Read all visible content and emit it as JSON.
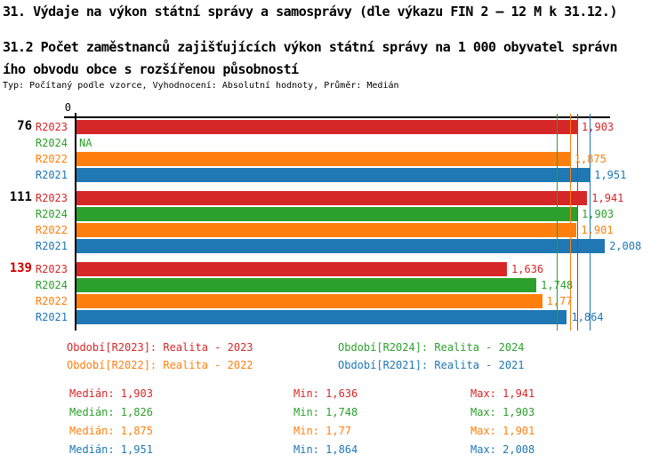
{
  "title": "31. Výdaje na výkon státní správy a samosprávy (dle výkazu FIN 2 – 12 M k 31.12.)",
  "subtitle_lines": [
    "31.2 Počet zaměstnanců zajišťujících výkon státní správy na 1 000 obyvatel správn",
    "ího obvodu obce s rozšířenou působností"
  ],
  "meta": "Typ: Počítaný podle vzorce, Vyhodnocení: Absolutní hodnoty, Průměr: Medián",
  "colors": {
    "R2023": "#d62728",
    "R2024": "#2ca02c",
    "R2022": "#ff7f0e",
    "R2021": "#1f77b4",
    "group_label_default": "#000000",
    "group_label_highlight": "#cc0000",
    "axis": "#000000"
  },
  "chart_data": {
    "type": "bar",
    "orientation": "horizontal",
    "title": "31.2 Počet zaměstnanců zajišťujících výkon státní správy na 1 000 obyvatel správního obvodu obce s rozšířenou působností",
    "axis": {
      "origin_label": "0",
      "min": 0,
      "max": 2.028,
      "grid": false
    },
    "series_order": [
      "R2023",
      "R2024",
      "R2022",
      "R2021"
    ],
    "groups": [
      {
        "label": "76",
        "highlight": false,
        "bars": [
          {
            "series": "R2023",
            "value": 1.903,
            "display": "1,903"
          },
          {
            "series": "R2024",
            "value": null,
            "display": "NA"
          },
          {
            "series": "R2022",
            "value": 1.875,
            "display": "1,875"
          },
          {
            "series": "R2021",
            "value": 1.951,
            "display": "1,951"
          }
        ]
      },
      {
        "label": "111",
        "highlight": false,
        "bars": [
          {
            "series": "R2023",
            "value": 1.941,
            "display": "1,941"
          },
          {
            "series": "R2024",
            "value": 1.903,
            "display": "1,903"
          },
          {
            "series": "R2022",
            "value": 1.901,
            "display": "1,901"
          },
          {
            "series": "R2021",
            "value": 2.008,
            "display": "2,008"
          }
        ]
      },
      {
        "label": "139",
        "highlight": true,
        "bars": [
          {
            "series": "R2023",
            "value": 1.636,
            "display": "1,636"
          },
          {
            "series": "R2024",
            "value": 1.748,
            "display": "1,748"
          },
          {
            "series": "R2022",
            "value": 1.77,
            "display": "1,77"
          },
          {
            "series": "R2021",
            "value": 1.864,
            "display": "1,864"
          }
        ]
      }
    ],
    "median_lines": [
      {
        "series": "R2023",
        "value": 1.903
      },
      {
        "series": "R2024",
        "value": 1.826
      },
      {
        "series": "R2022",
        "value": 1.875
      },
      {
        "series": "R2021",
        "value": 1.951
      }
    ]
  },
  "legend": [
    {
      "series": "R2023",
      "text": "Období[R2023]: Realita - 2023"
    },
    {
      "series": "R2024",
      "text": "Období[R2024]: Realita - 2024"
    },
    {
      "series": "R2022",
      "text": "Období[R2022]: Realita - 2022"
    },
    {
      "series": "R2021",
      "text": "Období[R2021]: Realita - 2021"
    }
  ],
  "stats": [
    {
      "series": "R2023",
      "median": "Medián: 1,903",
      "min": "Min: 1,636",
      "max": "Max: 1,941"
    },
    {
      "series": "R2024",
      "median": "Medián: 1,826",
      "min": "Min: 1,748",
      "max": "Max: 1,903"
    },
    {
      "series": "R2022",
      "median": "Medián: 1,875",
      "min": "Min: 1,77",
      "max": "Max: 1,901"
    },
    {
      "series": "R2021",
      "median": "Medián: 1,951",
      "min": "Min: 1,864",
      "max": "Max: 2,008"
    }
  ]
}
